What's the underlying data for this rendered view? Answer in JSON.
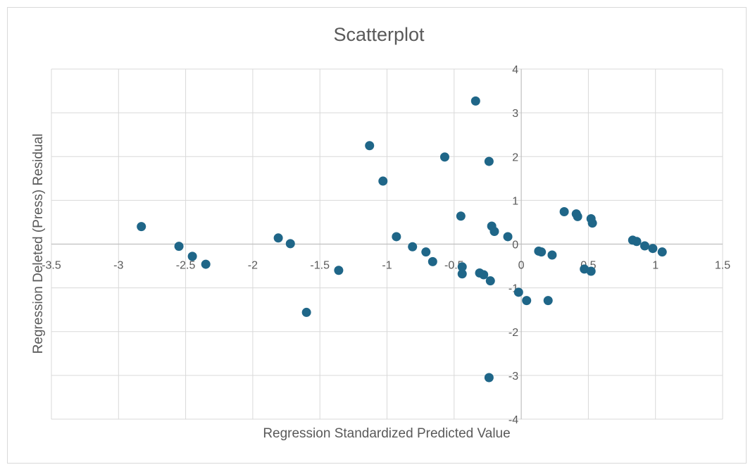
{
  "chart_data": {
    "type": "scatter",
    "title": "Scatterplot",
    "xlabel": "Regression Standardized Predicted Value",
    "ylabel": "Regression Deleted (Press) Residual",
    "xlim": [
      -3.5,
      1.5
    ],
    "ylim": [
      -4,
      4
    ],
    "x_ticks": [
      -3.5,
      -3,
      -2.5,
      -2,
      -1.5,
      -1,
      -0.5,
      0,
      0.5,
      1,
      1.5
    ],
    "y_ticks": [
      -4,
      -3,
      -2,
      -1,
      0,
      1,
      2,
      3,
      4
    ],
    "x_tick_labels": [
      "-3.5",
      "-3",
      "-2.5",
      "-2",
      "-1.5",
      "-1",
      "-0.5",
      "0",
      "0.5",
      "1",
      "1.5"
    ],
    "y_tick_labels": [
      "-4",
      "-3",
      "-2",
      "-1",
      "0",
      "1",
      "2",
      "3",
      "4"
    ],
    "grid": true,
    "marker_color": "#1f6688",
    "points": [
      {
        "x": -2.83,
        "y": 0.4
      },
      {
        "x": -2.55,
        "y": -0.05
      },
      {
        "x": -2.45,
        "y": -0.28
      },
      {
        "x": -2.35,
        "y": -0.46
      },
      {
        "x": -1.81,
        "y": 0.14
      },
      {
        "x": -1.72,
        "y": 0.01
      },
      {
        "x": -1.6,
        "y": -1.56
      },
      {
        "x": -1.36,
        "y": -0.6
      },
      {
        "x": -1.13,
        "y": 2.25
      },
      {
        "x": -1.03,
        "y": 1.44
      },
      {
        "x": -0.93,
        "y": 0.17
      },
      {
        "x": -0.81,
        "y": -0.06
      },
      {
        "x": -0.71,
        "y": -0.18
      },
      {
        "x": -0.66,
        "y": -0.4
      },
      {
        "x": -0.57,
        "y": 1.99
      },
      {
        "x": -0.45,
        "y": 0.64
      },
      {
        "x": -0.44,
        "y": -0.52
      },
      {
        "x": -0.44,
        "y": -0.68
      },
      {
        "x": -0.34,
        "y": 3.27
      },
      {
        "x": -0.31,
        "y": -0.66
      },
      {
        "x": -0.28,
        "y": -0.7
      },
      {
        "x": -0.24,
        "y": 1.89
      },
      {
        "x": -0.23,
        "y": -0.84
      },
      {
        "x": -0.22,
        "y": 0.41
      },
      {
        "x": -0.2,
        "y": 0.29
      },
      {
        "x": -0.24,
        "y": -3.05
      },
      {
        "x": -0.1,
        "y": 0.17
      },
      {
        "x": -0.02,
        "y": -1.1
      },
      {
        "x": 0.04,
        "y": -1.29
      },
      {
        "x": 0.13,
        "y": -0.16
      },
      {
        "x": 0.15,
        "y": -0.18
      },
      {
        "x": 0.2,
        "y": -1.29
      },
      {
        "x": 0.23,
        "y": -0.25
      },
      {
        "x": 0.32,
        "y": 0.74
      },
      {
        "x": 0.41,
        "y": 0.69
      },
      {
        "x": 0.42,
        "y": 0.63
      },
      {
        "x": 0.47,
        "y": -0.57
      },
      {
        "x": 0.52,
        "y": -0.62
      },
      {
        "x": 0.52,
        "y": 0.58
      },
      {
        "x": 0.53,
        "y": 0.48
      },
      {
        "x": 0.83,
        "y": 0.09
      },
      {
        "x": 0.86,
        "y": 0.06
      },
      {
        "x": 0.92,
        "y": -0.04
      },
      {
        "x": 0.98,
        "y": -0.1
      },
      {
        "x": 1.05,
        "y": -0.18
      }
    ]
  }
}
